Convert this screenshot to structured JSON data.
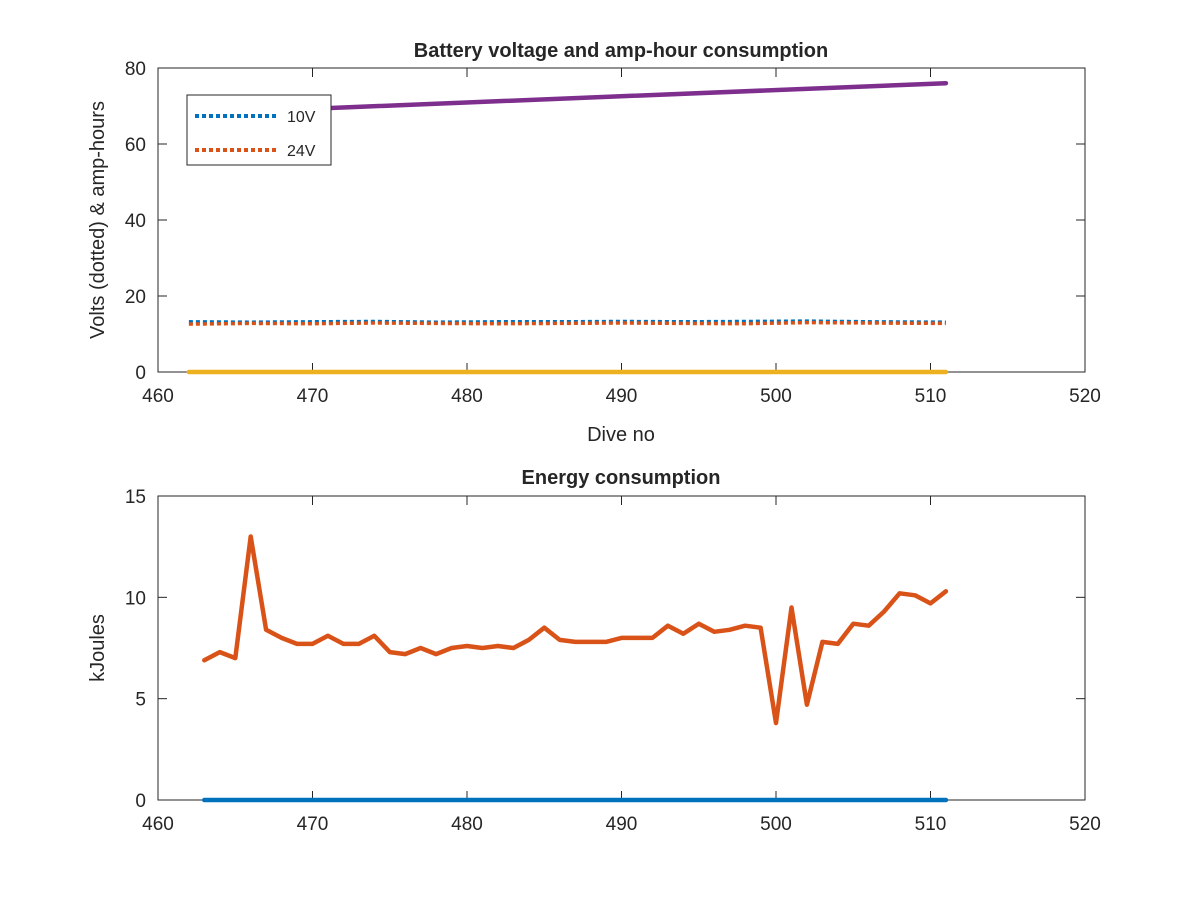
{
  "chart_data": [
    {
      "type": "line",
      "title": "Battery voltage and amp-hour consumption",
      "xlabel": "Dive no",
      "ylabel": "Volts (dotted) & amp-hours",
      "xlim": [
        460,
        520
      ],
      "ylim": [
        0,
        80
      ],
      "xticks": [
        460,
        470,
        480,
        490,
        500,
        510,
        520
      ],
      "yticks": [
        0,
        20,
        40,
        60,
        80
      ],
      "grid": false,
      "legend_position": "top-left",
      "series": [
        {
          "name": "10V",
          "style": "dotted",
          "color": "#0072BD",
          "x": [
            462,
            466,
            470,
            474,
            478,
            482,
            486,
            490,
            494,
            498,
            502,
            506,
            511
          ],
          "y": [
            13.2,
            13.1,
            13.2,
            13.3,
            13.1,
            13.2,
            13.2,
            13.3,
            13.2,
            13.3,
            13.4,
            13.2,
            13.1
          ]
        },
        {
          "name": "24V",
          "style": "dotted",
          "color": "#D95319",
          "x": [
            462,
            466,
            470,
            474,
            478,
            482,
            486,
            490,
            494,
            498,
            502,
            506,
            511
          ],
          "y": [
            12.6,
            12.8,
            12.7,
            12.9,
            12.8,
            12.7,
            12.8,
            12.9,
            12.8,
            12.7,
            13.0,
            12.9,
            12.8
          ]
        },
        {
          "style": "solid",
          "color": "#7E2F8E",
          "x": [
            470,
            511
          ],
          "y": [
            69.3,
            76
          ]
        },
        {
          "style": "solid",
          "color": "#EDB120",
          "x": [
            462,
            511
          ],
          "y": [
            0,
            0
          ]
        }
      ]
    },
    {
      "type": "line",
      "title": "Energy consumption",
      "xlabel": "",
      "ylabel": "kJoules",
      "xlim": [
        460,
        520
      ],
      "ylim": [
        0,
        15
      ],
      "xticks": [
        460,
        470,
        480,
        490,
        500,
        510,
        520
      ],
      "yticks": [
        0,
        5,
        10,
        15
      ],
      "grid": false,
      "series": [
        {
          "style": "solid",
          "color": "#D95319",
          "x": [
            463,
            464,
            465,
            466,
            467,
            468,
            469,
            470,
            471,
            472,
            473,
            474,
            475,
            476,
            477,
            478,
            479,
            480,
            481,
            482,
            483,
            484,
            485,
            486,
            487,
            488,
            489,
            490,
            491,
            492,
            493,
            494,
            495,
            496,
            497,
            498,
            499,
            500,
            501,
            502,
            503,
            504,
            505,
            506,
            507,
            508,
            509,
            510,
            511
          ],
          "y": [
            6.9,
            7.3,
            7.0,
            13.0,
            8.4,
            8.0,
            7.7,
            7.7,
            8.1,
            7.7,
            7.7,
            8.1,
            7.3,
            7.2,
            7.5,
            7.2,
            7.5,
            7.6,
            7.5,
            7.6,
            7.5,
            7.9,
            8.5,
            7.9,
            7.8,
            7.8,
            7.8,
            8.0,
            8.0,
            8.0,
            8.6,
            8.2,
            8.7,
            8.3,
            8.4,
            8.6,
            8.5,
            3.8,
            9.5,
            4.7,
            7.8,
            7.7,
            8.7,
            8.6,
            9.3,
            10.2,
            10.1,
            9.7,
            10.3
          ]
        },
        {
          "style": "solid",
          "color": "#0072BD",
          "x": [
            463,
            511
          ],
          "y": [
            0,
            0
          ]
        }
      ]
    }
  ]
}
